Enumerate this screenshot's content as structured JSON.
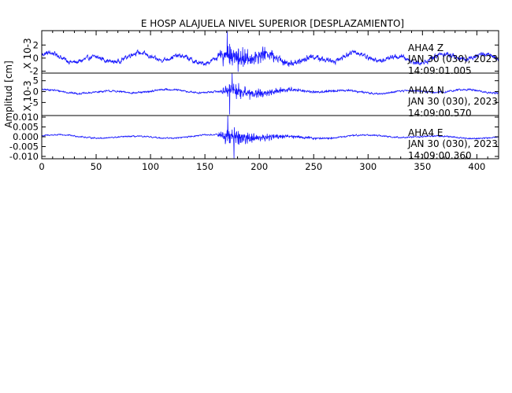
{
  "chart_data": {
    "type": "line",
    "title": "E HOSP ALAJUELA NIVEL SUPERIOR [DESPLAZAMIENTO]",
    "ylabel": "Amplitud [cm]",
    "xlim": [
      0,
      420
    ],
    "x_ticks": [
      0,
      50,
      100,
      150,
      200,
      250,
      300,
      350,
      400
    ],
    "color": "#1a1aff",
    "grid": false,
    "panels": [
      {
        "station": "AHA4",
        "component": "Z",
        "date": "JAN 30 (030), 2023",
        "time": "14:09:01.005",
        "scale_label": "X 10-3",
        "ylim": [
          -2.3,
          4.2
        ],
        "y_ticks": [
          {
            "value": 2,
            "label": "2"
          },
          {
            "value": 0,
            "label": "0"
          },
          {
            "value": -2,
            "label": "-2"
          }
        ],
        "series": {
          "noise": 0.6,
          "long_period": [
            {
              "amp": 0.5,
              "period": 40,
              "phase": 0.3
            },
            {
              "amp": 0.35,
              "period": 97,
              "phase": 1.7
            }
          ],
          "burst": {
            "start": 160,
            "peak": 172,
            "decay": 38,
            "amp": 2.6
          },
          "peak_max": 4.1,
          "peak_min": -2.1
        }
      },
      {
        "station": "AHA4",
        "component": "N",
        "date": "JAN 30 (030), 2023",
        "time": "14:09:00.570",
        "scale_label": "X 10-3",
        "ylim": [
          -11,
          8.5
        ],
        "y_ticks": [
          {
            "value": 5,
            "label": "5"
          },
          {
            "value": 0,
            "label": "0"
          },
          {
            "value": -5,
            "label": "-5"
          }
        ],
        "series": {
          "noise": 0.7,
          "long_period": [
            {
              "amp": 0.6,
              "period": 55,
              "phase": 0.9
            },
            {
              "amp": 0.4,
              "period": 130,
              "phase": 2.2
            }
          ],
          "burst": {
            "start": 162,
            "peak": 176,
            "decay": 32,
            "amp": 5.5
          },
          "peak_max": 8.5,
          "peak_min": -10.5
        }
      },
      {
        "station": "AHA4",
        "component": "E",
        "date": "JAN 30 (030), 2023",
        "time": "14:09:00.360",
        "scale_label": "",
        "ylim": [
          -0.0112,
          0.0108
        ],
        "y_ticks": [
          {
            "value": 0.01,
            "label": "0.010"
          },
          {
            "value": 0.005,
            "label": "0.005"
          },
          {
            "value": 0.0,
            "label": "0.000"
          },
          {
            "value": -0.005,
            "label": "-0.005"
          },
          {
            "value": -0.01,
            "label": "-0.010"
          }
        ],
        "series": {
          "noise": 0.0006,
          "long_period": [
            {
              "amp": 0.0006,
              "period": 70,
              "phase": 0.2
            },
            {
              "amp": 0.0004,
              "period": 150,
              "phase": 1.1
            }
          ],
          "burst": {
            "start": 160,
            "peak": 172,
            "decay": 30,
            "amp": 0.0065
          },
          "peak_max": 0.0108,
          "peak_min": -0.0112
        }
      }
    ]
  }
}
